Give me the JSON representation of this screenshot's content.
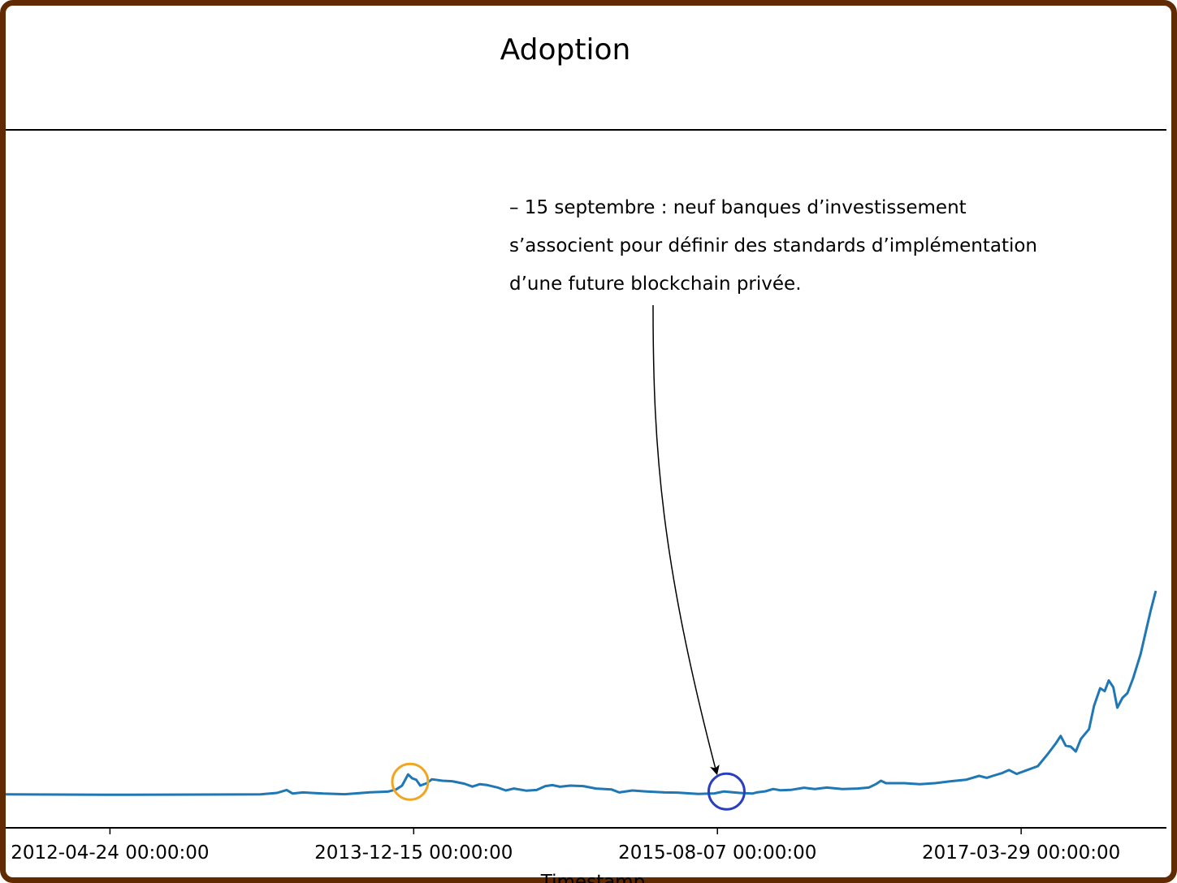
{
  "chart_data": {
    "type": "line",
    "title": "Adoption",
    "xlabel": "Timestamp",
    "ylabel": "",
    "x_ticks": [
      "2012-04-24 00:00:00",
      "2013-12-15 00:00:00",
      "2015-08-07 00:00:00",
      "2017-03-29 00:00:00"
    ],
    "xlim": [
      "2011-10-01",
      "2018-01-10"
    ],
    "ylim": [
      0,
      20000
    ],
    "grid": false,
    "line_color": "#1f77b4",
    "series": [
      {
        "values": [
          [
            "2011-10-01",
            100
          ],
          [
            "2012-06-01",
            60
          ],
          [
            "2013-01-01",
            90
          ],
          [
            "2013-02-15",
            110
          ],
          [
            "2013-03-20",
            250
          ],
          [
            "2013-04-08",
            550
          ],
          [
            "2013-04-20",
            180
          ],
          [
            "2013-05-10",
            300
          ],
          [
            "2013-06-20",
            180
          ],
          [
            "2013-08-01",
            120
          ],
          [
            "2013-09-20",
            320
          ],
          [
            "2013-10-25",
            380
          ],
          [
            "2013-11-10",
            600
          ],
          [
            "2013-11-22",
            1000
          ],
          [
            "2013-12-04",
            2150
          ],
          [
            "2013-12-12",
            1750
          ],
          [
            "2013-12-20",
            1600
          ],
          [
            "2013-12-28",
            1000
          ],
          [
            "2014-01-10",
            1250
          ],
          [
            "2014-01-20",
            1650
          ],
          [
            "2014-02-10",
            1500
          ],
          [
            "2014-03-01",
            1450
          ],
          [
            "2014-03-25",
            1200
          ],
          [
            "2014-04-10",
            900
          ],
          [
            "2014-04-25",
            1150
          ],
          [
            "2014-05-10",
            1050
          ],
          [
            "2014-05-30",
            800
          ],
          [
            "2014-06-15",
            500
          ],
          [
            "2014-07-01",
            700
          ],
          [
            "2014-07-25",
            480
          ],
          [
            "2014-08-15",
            550
          ],
          [
            "2014-09-01",
            950
          ],
          [
            "2014-09-15",
            1050
          ],
          [
            "2014-09-30",
            880
          ],
          [
            "2014-10-20",
            1000
          ],
          [
            "2014-11-15",
            950
          ],
          [
            "2014-12-10",
            700
          ],
          [
            "2015-01-10",
            600
          ],
          [
            "2015-01-25",
            300
          ],
          [
            "2015-02-20",
            500
          ],
          [
            "2015-03-20",
            400
          ],
          [
            "2015-04-25",
            300
          ],
          [
            "2015-05-20",
            280
          ],
          [
            "2015-06-30",
            150
          ],
          [
            "2015-08-01",
            200
          ],
          [
            "2015-08-20",
            400
          ],
          [
            "2015-09-20",
            250
          ],
          [
            "2015-10-15",
            180
          ],
          [
            "2015-10-25",
            320
          ],
          [
            "2015-11-10",
            420
          ],
          [
            "2015-11-25",
            650
          ],
          [
            "2015-12-10",
            520
          ],
          [
            "2015-12-30",
            560
          ],
          [
            "2016-01-25",
            780
          ],
          [
            "2016-02-15",
            650
          ],
          [
            "2016-03-10",
            800
          ],
          [
            "2016-04-10",
            650
          ],
          [
            "2016-05-10",
            700
          ],
          [
            "2016-06-01",
            800
          ],
          [
            "2016-06-15",
            1150
          ],
          [
            "2016-06-25",
            1500
          ],
          [
            "2016-07-05",
            1250
          ],
          [
            "2016-08-10",
            1250
          ],
          [
            "2016-09-10",
            1150
          ],
          [
            "2016-10-10",
            1250
          ],
          [
            "2016-11-10",
            1450
          ],
          [
            "2016-12-10",
            1600
          ],
          [
            "2017-01-05",
            2000
          ],
          [
            "2017-01-20",
            1800
          ],
          [
            "2017-02-01",
            2000
          ],
          [
            "2017-02-20",
            2300
          ],
          [
            "2017-03-05",
            2600
          ],
          [
            "2017-03-20",
            2200
          ],
          [
            "2017-04-10",
            2600
          ],
          [
            "2017-05-01",
            3000
          ],
          [
            "2017-05-20",
            4200
          ],
          [
            "2017-06-05",
            5300
          ],
          [
            "2017-06-15",
            6100
          ],
          [
            "2017-06-25",
            5100
          ],
          [
            "2017-07-05",
            5000
          ],
          [
            "2017-07-15",
            4500
          ],
          [
            "2017-07-25",
            5800
          ],
          [
            "2017-08-10",
            6800
          ],
          [
            "2017-08-20",
            9200
          ],
          [
            "2017-09-01",
            11000
          ],
          [
            "2017-09-10",
            10700
          ],
          [
            "2017-09-18",
            11800
          ],
          [
            "2017-09-27",
            11100
          ],
          [
            "2017-10-05",
            9000
          ],
          [
            "2017-10-15",
            10000
          ],
          [
            "2017-10-25",
            10500
          ],
          [
            "2017-11-05",
            12000
          ],
          [
            "2017-11-20",
            14500
          ],
          [
            "2017-12-01",
            17000
          ],
          [
            "2017-12-10",
            19000
          ],
          [
            "2017-12-20",
            21000
          ]
        ]
      }
    ],
    "highlights": [
      {
        "date": "2013-12-08",
        "value": 1400,
        "color": "#f0a623"
      },
      {
        "date": "2015-08-25",
        "value": 400,
        "color": "#2a3fbf"
      }
    ],
    "annotation": {
      "lines": [
        "– 15 septembre : neuf banques d’investissement",
        "s’associent pour définir des standards d’implémentation",
        "d’une future blockchain privée."
      ],
      "target_date": "2015-08-25",
      "target_value": 400
    }
  }
}
